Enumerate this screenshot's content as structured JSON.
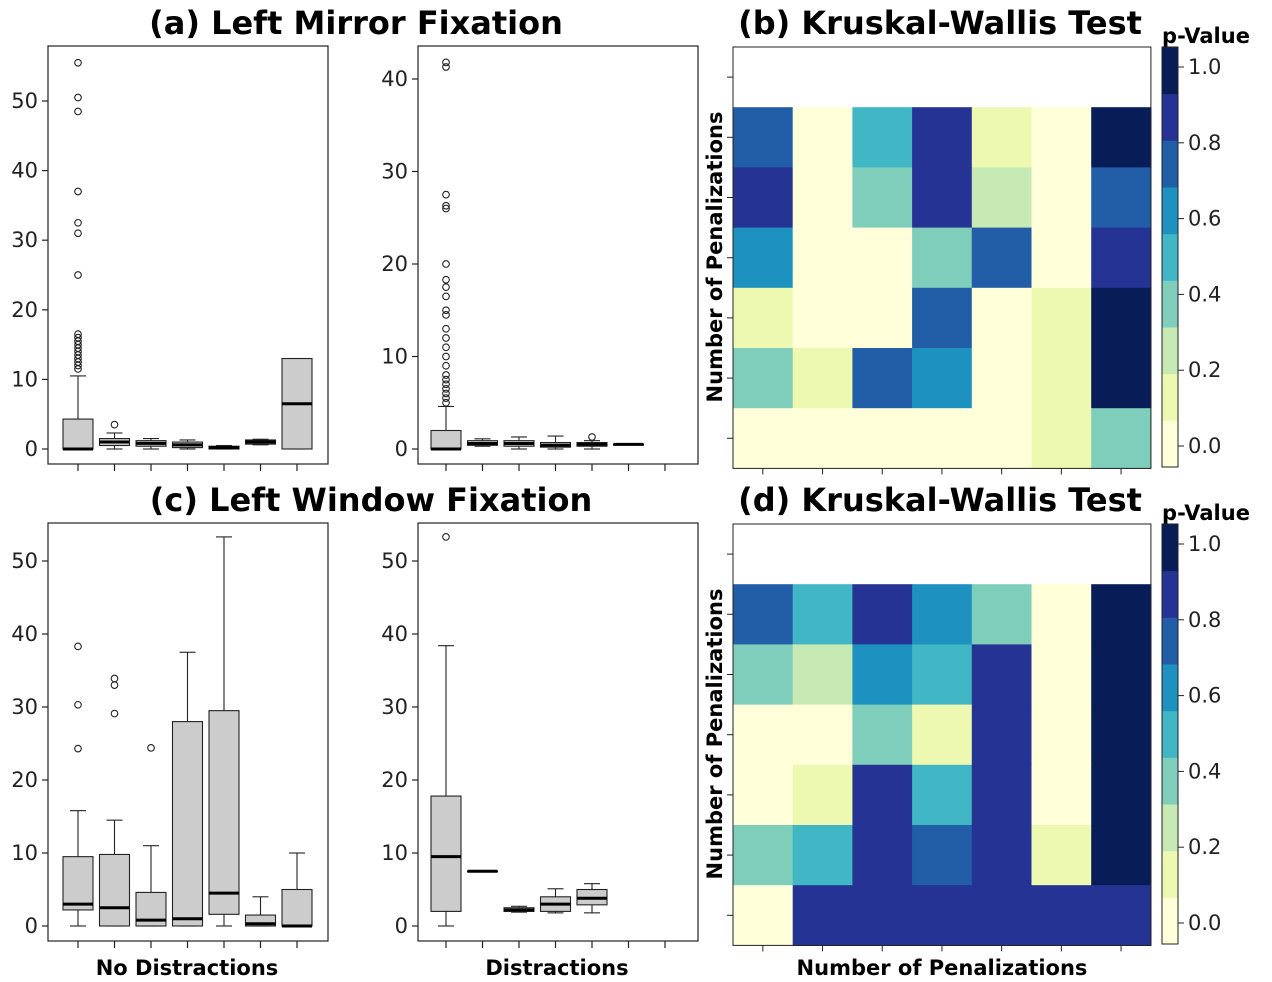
{
  "panels": {
    "a_title": "(a) Left Mirror Fixation",
    "b_title": "(b) Kruskal-Wallis Test",
    "c_title": "(c) Left Window Fixation",
    "d_title": "(d) Kruskal-Wallis Test",
    "xlabel_no_distractions": "No Distractions",
    "xlabel_distractions": "Distractions",
    "heatmap_xlabel": "Number of Penalizations",
    "heatmap_ylabel": "Number of Penalizations",
    "colorbar_label": "p-Value"
  },
  "colors": {
    "box_fill": "#cccccc",
    "colormap": [
      "#ffffd9",
      "#edf8b1",
      "#c7e9b4",
      "#7fcdbb",
      "#41b6c4",
      "#1d91c0",
      "#225ea8",
      "#253494",
      "#081d58"
    ]
  },
  "chart_data": [
    {
      "id": "a-left",
      "type": "box",
      "ylim": [
        0,
        57
      ],
      "yticks": [
        "0",
        "10",
        "20",
        "30",
        "40",
        "50"
      ],
      "boxes": [
        {
          "q1": 0,
          "median": 0,
          "q3": 4.3,
          "whislo": 0,
          "whishi": 10.5,
          "fliers": [
            11.5,
            12,
            12.5,
            13,
            13.5,
            14,
            14.5,
            15,
            15.5,
            16,
            16.5,
            25,
            31,
            32.5,
            37,
            48.5,
            50.5,
            55.5
          ]
        },
        {
          "q1": 0.5,
          "median": 1.0,
          "q3": 1.5,
          "whislo": 0,
          "whishi": 2.3,
          "fliers": [
            3.5
          ]
        },
        {
          "q1": 0.4,
          "median": 0.8,
          "q3": 1.2,
          "whislo": 0,
          "whishi": 1.5,
          "fliers": []
        },
        {
          "q1": 0.2,
          "median": 0.6,
          "q3": 1.0,
          "whislo": 0,
          "whishi": 1.3,
          "fliers": []
        },
        {
          "q1": 0,
          "median": 0.2,
          "q3": 0.4,
          "whislo": 0,
          "whishi": 0.5,
          "fliers": []
        },
        {
          "q1": 0.7,
          "median": 1.0,
          "q3": 1.3,
          "whislo": 0.6,
          "whishi": 1.4,
          "fliers": []
        },
        {
          "q1": 0,
          "median": 6.5,
          "q3": 13,
          "whislo": 0,
          "whishi": 13,
          "fliers": []
        }
      ]
    },
    {
      "id": "a-right",
      "type": "box",
      "ylim": [
        0,
        43
      ],
      "yticks": [
        "0",
        "10",
        "20",
        "30",
        "40"
      ],
      "boxes": [
        {
          "q1": 0,
          "median": 0,
          "q3": 2,
          "whislo": 0,
          "whishi": 4.6,
          "fliers": [
            5,
            5.5,
            6,
            6.5,
            7,
            7.5,
            8,
            9,
            10,
            11,
            12,
            13,
            14.5,
            15,
            16.5,
            17.5,
            18.3,
            20,
            26,
            26.3,
            27.5,
            41.3,
            41.8
          ]
        },
        {
          "q1": 0.4,
          "median": 0.6,
          "q3": 0.9,
          "whislo": 0.3,
          "whishi": 1.1,
          "fliers": []
        },
        {
          "q1": 0.3,
          "median": 0.6,
          "q3": 0.9,
          "whislo": 0,
          "whishi": 1.3,
          "fliers": []
        },
        {
          "q1": 0.2,
          "median": 0.4,
          "q3": 0.7,
          "whislo": 0,
          "whishi": 1.4,
          "fliers": []
        },
        {
          "q1": 0.3,
          "median": 0.5,
          "q3": 0.7,
          "whislo": 0,
          "whishi": 0.9,
          "fliers": [
            1.3
          ]
        },
        {
          "q1": 0.5,
          "median": 0.5,
          "q3": 0.5,
          "whislo": 0.5,
          "whishi": 0.5,
          "fliers": []
        }
      ]
    },
    {
      "id": "c-left",
      "type": "box",
      "ylim": [
        -2,
        55
      ],
      "yticks": [
        "0",
        "10",
        "20",
        "30",
        "40",
        "50"
      ],
      "boxes": [
        {
          "q1": 2.2,
          "median": 3,
          "q3": 9.5,
          "whislo": 0,
          "whishi": 15.8,
          "fliers": [
            24.3,
            30.3,
            38.3
          ]
        },
        {
          "q1": 0,
          "median": 2.5,
          "q3": 9.8,
          "whislo": 0,
          "whishi": 14.5,
          "fliers": [
            29.1,
            33,
            33.9
          ]
        },
        {
          "q1": 0,
          "median": 0.8,
          "q3": 4.6,
          "whislo": 0,
          "whishi": 11,
          "fliers": [
            24.4
          ]
        },
        {
          "q1": 0,
          "median": 1,
          "q3": 28,
          "whislo": 0,
          "whishi": 37.5,
          "fliers": []
        },
        {
          "q1": 1.6,
          "median": 4.5,
          "q3": 29.5,
          "whislo": 0,
          "whishi": 53.3,
          "fliers": []
        },
        {
          "q1": 0,
          "median": 0.3,
          "q3": 1.5,
          "whislo": 0,
          "whishi": 4,
          "fliers": []
        },
        {
          "q1": 0,
          "median": 0,
          "q3": 5,
          "whislo": 0,
          "whishi": 10,
          "fliers": []
        }
      ]
    },
    {
      "id": "c-right",
      "type": "box",
      "ylim": [
        -2,
        55
      ],
      "yticks": [
        "0",
        "10",
        "20",
        "30",
        "40",
        "50"
      ],
      "boxes": [
        {
          "q1": 2,
          "median": 9.5,
          "q3": 17.8,
          "whislo": 0,
          "whishi": 38.4,
          "fliers": [
            53.3
          ]
        },
        {
          "q1": 7.5,
          "median": 7.5,
          "q3": 7.5,
          "whislo": 7.5,
          "whishi": 7.5,
          "fliers": []
        },
        {
          "q1": 2.0,
          "median": 2.2,
          "q3": 2.5,
          "whislo": 1.9,
          "whishi": 2.7,
          "fliers": []
        },
        {
          "q1": 2.0,
          "median": 3.0,
          "q3": 4.0,
          "whislo": 1.8,
          "whishi": 5.1,
          "fliers": []
        },
        {
          "q1": 2.9,
          "median": 3.8,
          "q3": 5.0,
          "whislo": 1.8,
          "whishi": 5.8,
          "fliers": []
        }
      ]
    },
    {
      "id": "b-heatmap",
      "type": "heatmap",
      "vmin": 0,
      "vmax": 1.05,
      "colorbar_ticks": [
        "0.0",
        "0.2",
        "0.4",
        "0.6",
        "0.8",
        "1.0"
      ],
      "values": [
        [
          null,
          null,
          null,
          null,
          null,
          null,
          null
        ],
        [
          0.72,
          0.08,
          0.55,
          0.82,
          0.22,
          0.08,
          1.0
        ],
        [
          0.85,
          0.08,
          0.4,
          0.82,
          0.28,
          0.08,
          0.78
        ],
        [
          0.62,
          0.02,
          0.02,
          0.4,
          0.72,
          0.08,
          0.88
        ],
        [
          0.2,
          0.02,
          0.08,
          0.75,
          0.02,
          0.18,
          1.0
        ],
        [
          0.4,
          0.18,
          0.75,
          0.64,
          0.02,
          0.18,
          1.0
        ],
        [
          0.02,
          0.02,
          0.02,
          0.02,
          0.08,
          0.18,
          0.4
        ]
      ]
    },
    {
      "id": "d-heatmap",
      "type": "heatmap",
      "vmin": 0,
      "vmax": 1.05,
      "colorbar_ticks": [
        "0.0",
        "0.2",
        "0.4",
        "0.6",
        "0.8",
        "1.0"
      ],
      "values": [
        [
          null,
          null,
          null,
          null,
          null,
          null,
          null
        ],
        [
          0.7,
          0.55,
          0.9,
          0.68,
          0.4,
          0.08,
          1.0
        ],
        [
          0.4,
          0.28,
          0.68,
          0.55,
          0.82,
          0.08,
          1.0
        ],
        [
          0.08,
          0.02,
          0.4,
          0.18,
          0.82,
          0.08,
          1.0
        ],
        [
          0.08,
          0.18,
          0.9,
          0.55,
          0.82,
          0.08,
          1.0
        ],
        [
          0.4,
          0.55,
          0.9,
          0.75,
          0.82,
          0.18,
          1.0
        ],
        [
          0.08,
          0.88,
          0.88,
          0.88,
          0.82,
          0.82,
          0.88
        ]
      ]
    }
  ]
}
